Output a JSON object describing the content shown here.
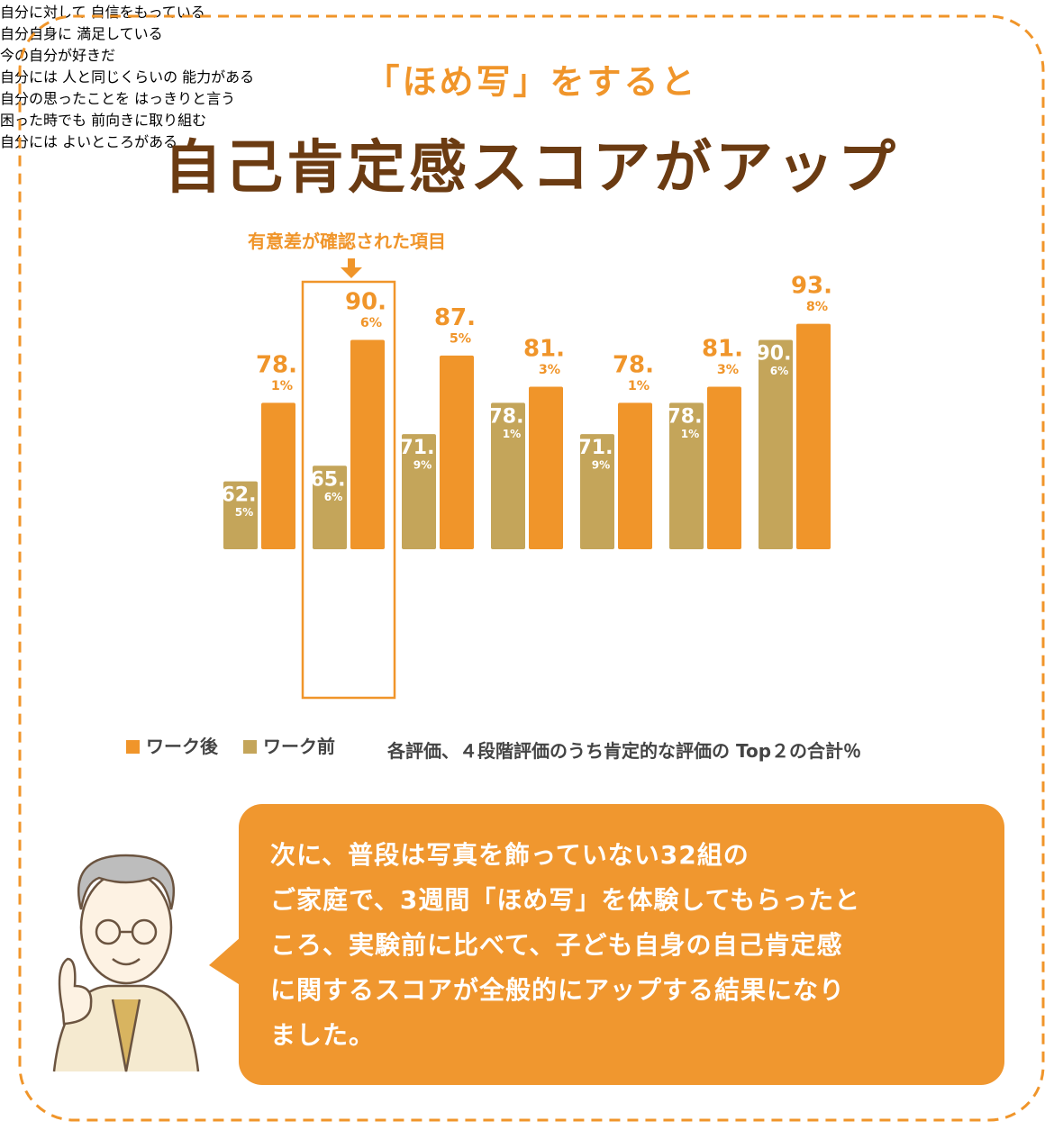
{
  "header": {
    "kicker": "「ほめ写」をすると",
    "title": "自己肯定感スコアがアップ"
  },
  "chart_data": {
    "type": "bar",
    "annotation": "有意差が確認された項目",
    "categories": [
      "自分に対して\n自信をもっている",
      "自分自身に\n満足している",
      "今の自分が好きだ",
      "自分には\n人と同じくらいの\n能力がある",
      "自分の思ったことを\nはっきりと言う",
      "困った時でも\n前向きに取り組む",
      "自分には\nよいところがある"
    ],
    "series": [
      {
        "name": "ワーク前",
        "color": "#c4a55a",
        "values": [
          62.5,
          65.6,
          71.9,
          78.1,
          71.9,
          78.1,
          90.6
        ],
        "value_labels": [
          "62.5%",
          "65.6%",
          "71.9%",
          "78.1%",
          "71.9%",
          "78.1%",
          "90.6%"
        ]
      },
      {
        "name": "ワーク後",
        "color": "#f0952a",
        "values": [
          78.1,
          90.6,
          87.5,
          81.3,
          78.1,
          81.3,
          93.8
        ],
        "value_labels": [
          "78.1%",
          "90.6%",
          "87.5%",
          "81.3%",
          "78.1%",
          "81.3%",
          "93.8%"
        ]
      }
    ],
    "note": "各評価、４段階評価のうち肯定的な評価の Top２の合計％"
  },
  "bubble": {
    "lines": [
      "次に、普段は写真を飾っていない32組の",
      "ご家庭で、3週間「ほめ写」を体験してもらったと",
      "ころ、実験前に比べて、子ども自身の自己肯定感",
      "に関するスコアが全般的にアップする結果になり",
      "ました。"
    ]
  }
}
